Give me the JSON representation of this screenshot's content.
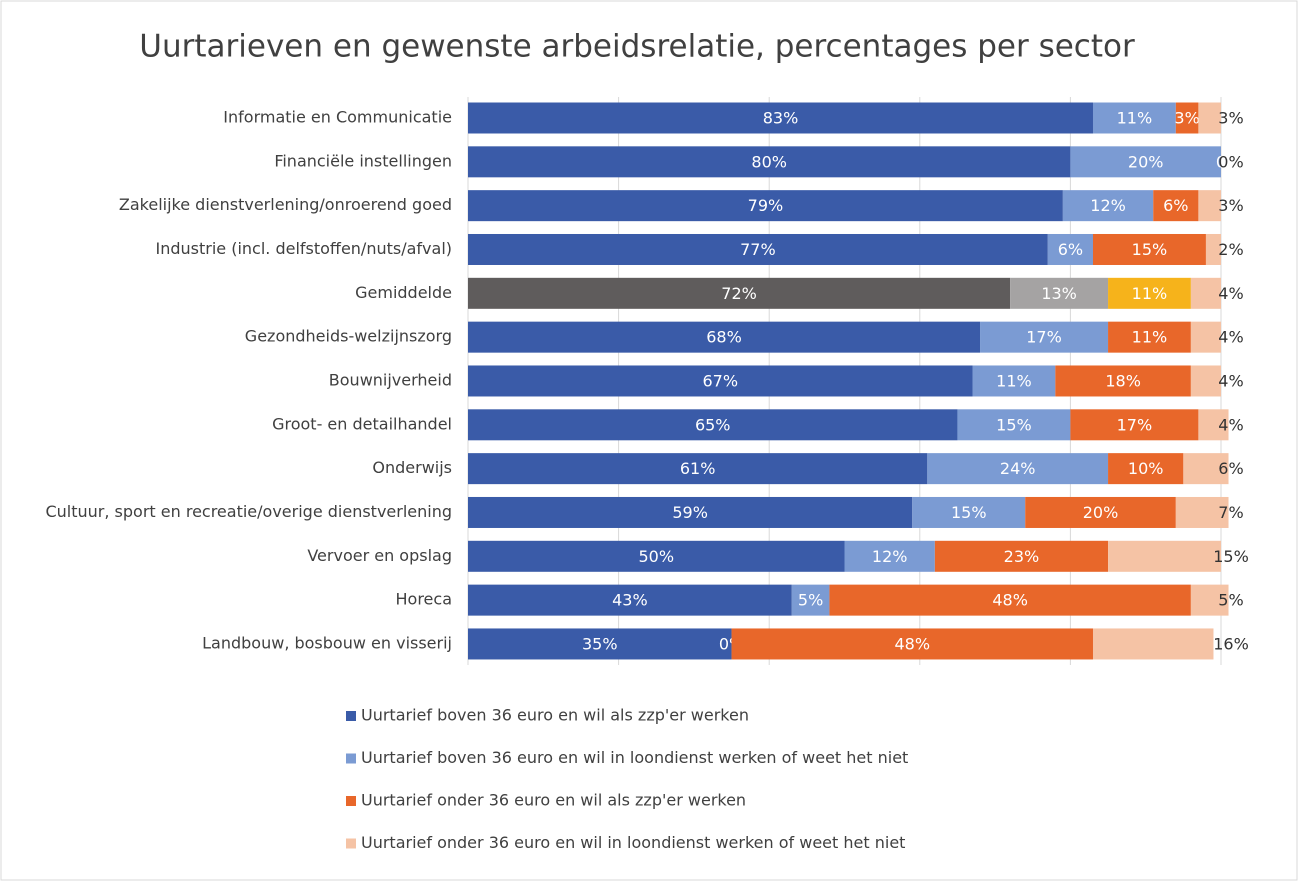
{
  "chart_data": {
    "type": "stacked_barh",
    "title": "Uurtarieven en gewenste arbeidsrelatie, percentages per sector",
    "categories": [
      "Informatie en Communicatie",
      "Financiële instellingen",
      "Zakelijke dienstverlening/onroerend goed",
      "Industrie (incl. delfstoffen/nuts/afval)",
      "Gemiddelde",
      "Gezondheids-welzijnszorg",
      "Bouwnijverheid",
      "Groot- en detailhandel",
      "Onderwijs",
      "Cultuur, sport en recreatie/overige dienstverlening",
      "Vervoer en opslag",
      "Horeca",
      "Landbouw, bosbouw en visserij"
    ],
    "series": [
      {
        "name": "Uurtarief boven 36 euro en wil als zzp'er werken",
        "color": "#3a5ba8",
        "label_color": "#ffffff",
        "values": [
          83,
          80,
          79,
          77,
          72,
          68,
          67,
          65,
          61,
          59,
          50,
          43,
          35
        ],
        "value_labels": [
          "83%",
          "80%",
          "79%",
          "77%",
          "72%",
          "68%",
          "67%",
          "65%",
          "61%",
          "59%",
          "50%",
          "43%",
          "35%"
        ]
      },
      {
        "name": "Uurtarief boven 36 euro en wil in loondienst werken of weet het niet",
        "color": "#7b9bd3",
        "label_color": "#ffffff",
        "values": [
          11,
          20,
          12,
          6,
          13,
          17,
          11,
          15,
          24,
          15,
          12,
          5,
          0
        ],
        "value_labels": [
          "11%",
          "20%",
          "12%",
          "6%",
          "13%",
          "17%",
          "11%",
          "15%",
          "24%",
          "15%",
          "12%",
          "5%",
          "0%"
        ]
      },
      {
        "name": "Uurtarief onder 36 euro en wil als zzp'er werken",
        "color": "#e8672a",
        "label_color": "#ffffff",
        "values": [
          3,
          0,
          6,
          15,
          11,
          11,
          18,
          17,
          10,
          20,
          23,
          48,
          48
        ],
        "value_labels": [
          "3%",
          "0",
          "6%",
          "15%",
          "11%",
          "11%",
          "18%",
          "17%",
          "10%",
          "20%",
          "23%",
          "48%",
          "48%"
        ]
      },
      {
        "name": "Uurtarief onder 36 euro en wil in loondienst werken of weet het niet",
        "color": "#f5c3a5",
        "label_color": "#333333",
        "values": [
          3,
          0,
          3,
          2,
          4,
          4,
          4,
          4,
          6,
          7,
          15,
          5,
          16
        ],
        "value_labels": [
          "3%",
          "0%",
          "3%",
          "2%",
          "4%",
          "4%",
          "4%",
          "4%",
          "6%",
          "7%",
          "15%",
          "5%",
          "16%"
        ]
      }
    ],
    "highlight": {
      "category": "Gemiddelde",
      "colors": [
        "#5f5c5c",
        "#a5a3a3",
        "#f6b31b",
        "#f5c3a5"
      ]
    },
    "xlim": [
      0,
      100
    ],
    "xticks": [
      0,
      20,
      40,
      60,
      80,
      100
    ],
    "grid": true
  }
}
